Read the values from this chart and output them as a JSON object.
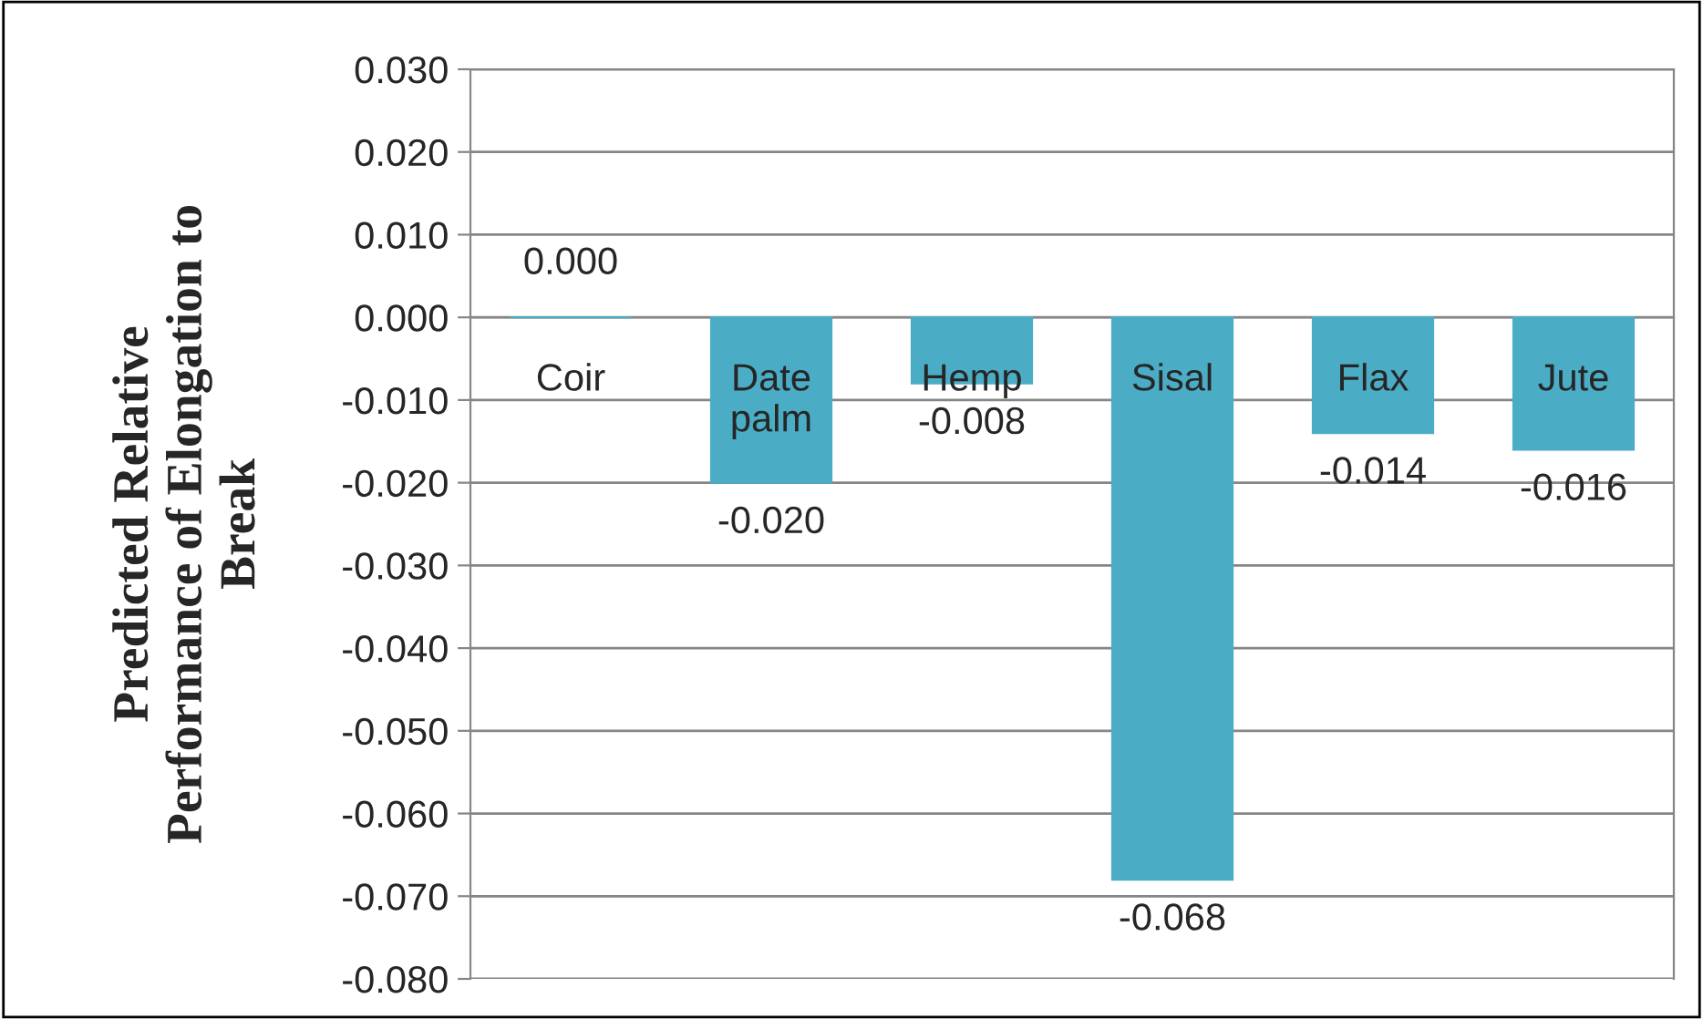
{
  "chart_data": {
    "type": "bar",
    "ylabel": "Predicted Relative\nPerformance of Elongation to\nBreak",
    "categories": [
      "Coir",
      "Date\npalm",
      "Hemp",
      "Sisal",
      "Flax",
      "Jute"
    ],
    "values": [
      0.0,
      -0.02,
      -0.008,
      -0.068,
      -0.014,
      -0.016
    ],
    "value_labels": [
      "0.000",
      "-0.020",
      "-0.008",
      "-0.068",
      "-0.014",
      "-0.016"
    ],
    "color": "#4bacc6",
    "ylim": [
      -0.08,
      0.03
    ],
    "yticks": [
      {
        "value": -0.08,
        "label": "-0.080"
      },
      {
        "value": -0.07,
        "label": "-0.070"
      },
      {
        "value": -0.06,
        "label": "-0.060"
      },
      {
        "value": -0.05,
        "label": "-0.050"
      },
      {
        "value": -0.04,
        "label": "-0.040"
      },
      {
        "value": -0.03,
        "label": "-0.030"
      },
      {
        "value": -0.02,
        "label": "-0.020"
      },
      {
        "value": -0.01,
        "label": "-0.010"
      },
      {
        "value": 0.0,
        "label": "0.000"
      },
      {
        "value": 0.01,
        "label": "0.010"
      },
      {
        "value": 0.02,
        "label": "0.020"
      },
      {
        "value": 0.03,
        "label": "0.030"
      }
    ],
    "grid": "y"
  }
}
